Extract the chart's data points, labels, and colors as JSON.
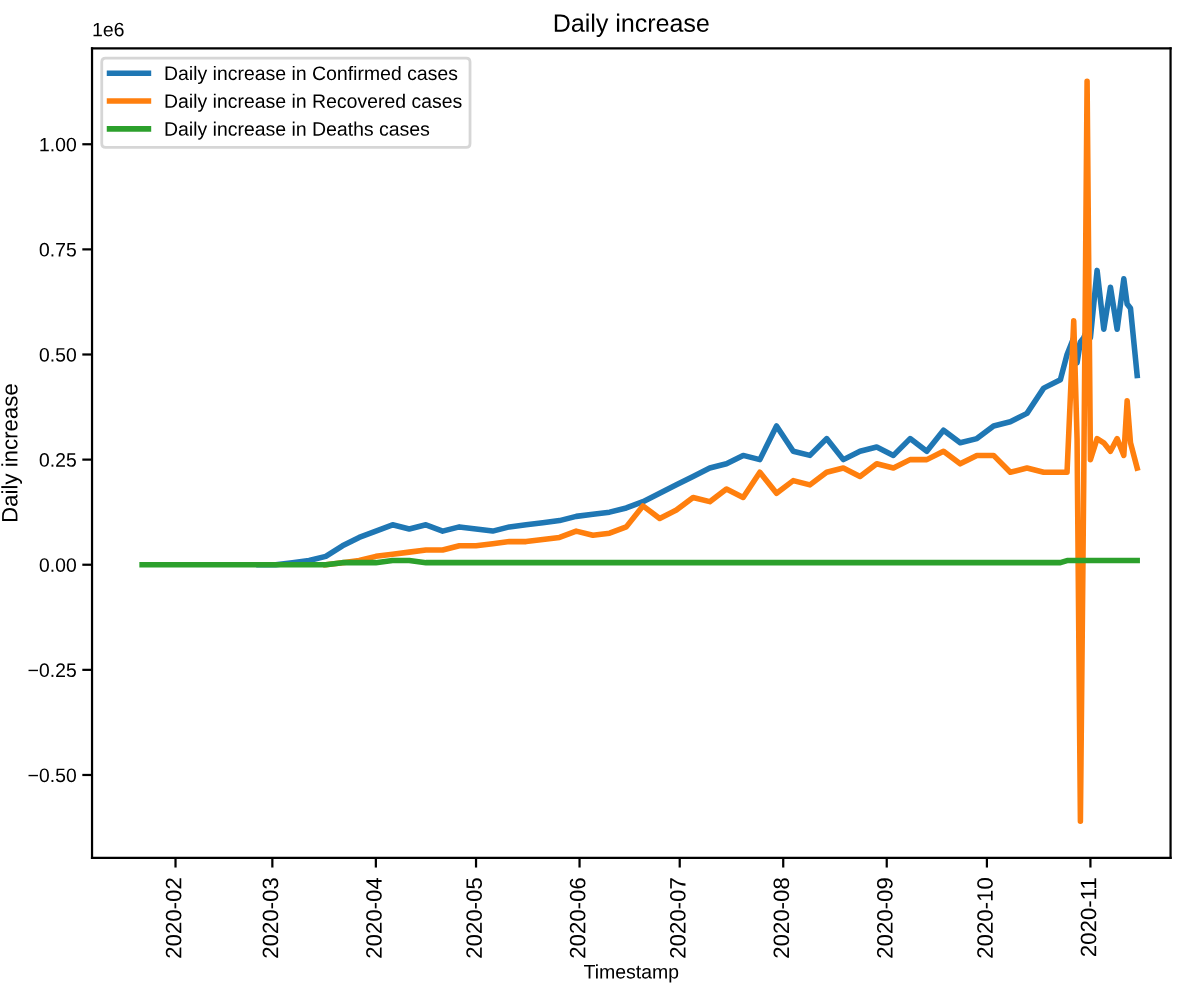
{
  "chart_data": {
    "type": "line",
    "title": "Daily increase",
    "xlabel": "Timestamp",
    "ylabel": "Daily increase",
    "annotations": [
      "1e6"
    ],
    "x": [
      "2020-01-22",
      "2020-01-27",
      "2020-02-01",
      "2020-02-06",
      "2020-02-11",
      "2020-02-16",
      "2020-02-21",
      "2020-02-26",
      "2020-03-02",
      "2020-03-07",
      "2020-03-12",
      "2020-03-17",
      "2020-03-22",
      "2020-03-27",
      "2020-04-01",
      "2020-04-06",
      "2020-04-11",
      "2020-04-16",
      "2020-04-21",
      "2020-04-26",
      "2020-05-01",
      "2020-05-06",
      "2020-05-11",
      "2020-05-16",
      "2020-05-21",
      "2020-05-26",
      "2020-05-31",
      "2020-06-05",
      "2020-06-10",
      "2020-06-15",
      "2020-06-20",
      "2020-06-25",
      "2020-06-30",
      "2020-07-05",
      "2020-07-10",
      "2020-07-15",
      "2020-07-20",
      "2020-07-25",
      "2020-07-30",
      "2020-08-04",
      "2020-08-09",
      "2020-08-14",
      "2020-08-19",
      "2020-08-24",
      "2020-08-29",
      "2020-09-03",
      "2020-09-08",
      "2020-09-13",
      "2020-09-18",
      "2020-09-23",
      "2020-09-28",
      "2020-10-03",
      "2020-10-08",
      "2020-10-13",
      "2020-10-18",
      "2020-10-23",
      "2020-10-25",
      "2020-10-27",
      "2020-10-28",
      "2020-10-29",
      "2020-10-30",
      "2020-10-31",
      "2020-11-01",
      "2020-11-03",
      "2020-11-05",
      "2020-11-07",
      "2020-11-09",
      "2020-11-11",
      "2020-11-12",
      "2020-11-13",
      "2020-11-15"
    ],
    "series": [
      {
        "name": "Daily increase in Confirmed cases",
        "color": "#1f77b4",
        "values": [
          null,
          null,
          null,
          null,
          null,
          null,
          null,
          0,
          0,
          0.005,
          0.01,
          0.02,
          0.045,
          0.065,
          0.08,
          0.095,
          0.085,
          0.095,
          0.08,
          0.09,
          0.085,
          0.08,
          0.09,
          0.095,
          0.1,
          0.105,
          0.115,
          0.12,
          0.125,
          0.135,
          0.15,
          0.17,
          0.19,
          0.21,
          0.23,
          0.24,
          0.26,
          0.25,
          0.33,
          0.27,
          0.26,
          0.3,
          0.25,
          0.27,
          0.28,
          0.26,
          0.3,
          0.27,
          0.32,
          0.29,
          0.3,
          0.33,
          0.34,
          0.36,
          0.42,
          0.44,
          0.5,
          0.54,
          0.48,
          0.53,
          0.54,
          0.56,
          0.54,
          0.7,
          0.56,
          0.66,
          0.56,
          0.68,
          0.62,
          0.61,
          0.45
        ]
      },
      {
        "name": "Daily increase in Recovered cases",
        "color": "#ff7f0e",
        "values": [
          null,
          null,
          null,
          null,
          null,
          null,
          null,
          null,
          null,
          null,
          null,
          0,
          0.005,
          0.01,
          0.02,
          0.025,
          0.03,
          0.035,
          0.035,
          0.045,
          0.045,
          0.05,
          0.055,
          0.055,
          0.06,
          0.065,
          0.08,
          0.07,
          0.075,
          0.09,
          0.14,
          0.11,
          0.13,
          0.16,
          0.15,
          0.18,
          0.16,
          0.22,
          0.17,
          0.2,
          0.19,
          0.22,
          0.23,
          0.21,
          0.24,
          0.23,
          0.25,
          0.25,
          0.27,
          0.24,
          0.26,
          0.26,
          0.22,
          0.23,
          0.22,
          0.22,
          0.22,
          0.58,
          0.3,
          -0.61,
          0.2,
          1.15,
          0.25,
          0.3,
          0.29,
          0.27,
          0.3,
          0.26,
          0.39,
          0.29,
          0.23
        ]
      },
      {
        "name": "Daily increase in Deaths cases",
        "color": "#2ca02c",
        "values": [
          0,
          0,
          0,
          0,
          0,
          0,
          0,
          0,
          0,
          0,
          0,
          0,
          0.005,
          0.005,
          0.005,
          0.01,
          0.01,
          0.005,
          0.005,
          0.005,
          0.005,
          0.005,
          0.005,
          0.005,
          0.005,
          0.005,
          0.005,
          0.005,
          0.005,
          0.005,
          0.005,
          0.005,
          0.005,
          0.005,
          0.005,
          0.005,
          0.005,
          0.005,
          0.005,
          0.005,
          0.005,
          0.005,
          0.005,
          0.005,
          0.005,
          0.005,
          0.005,
          0.005,
          0.005,
          0.005,
          0.005,
          0.005,
          0.005,
          0.005,
          0.005,
          0.005,
          0.01,
          0.01,
          0.01,
          0.01,
          0.01,
          0.01,
          0.01,
          0.01,
          0.01,
          0.01,
          0.01,
          0.01,
          0.01,
          0.01,
          0.01
        ]
      }
    ],
    "xlim": [
      "2020-01-07",
      "2020-11-25"
    ],
    "xticks": [
      "2020-02",
      "2020-03",
      "2020-04",
      "2020-05",
      "2020-06",
      "2020-07",
      "2020-08",
      "2020-09",
      "2020-10",
      "2020-11"
    ],
    "ylim": [
      -0.697,
      1.228
    ],
    "yticks": [
      {
        "value": -0.5,
        "label": "−0.50"
      },
      -0.25,
      {
        "value": 0,
        "label": "0.00"
      },
      0.25,
      {
        "value": 0.5,
        "label": "0.50"
      },
      0.75,
      {
        "value": 1,
        "label": "1.00"
      }
    ],
    "legend": "top left",
    "grid": false,
    "marker": "none",
    "line_style": "solid"
  }
}
